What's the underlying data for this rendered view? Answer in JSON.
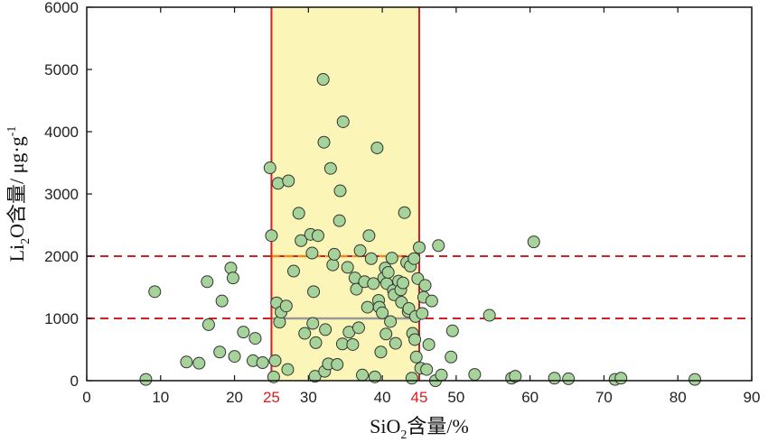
{
  "chart_data": {
    "type": "scatter",
    "xlabel": "SiO2含量/%",
    "ylabel": "Li2O含量/μg·g⁻¹",
    "xlim": [
      0,
      90
    ],
    "ylim": [
      0,
      6000
    ],
    "x_ticks": [
      0,
      10,
      20,
      30,
      40,
      50,
      60,
      70,
      80,
      90
    ],
    "y_ticks": [
      0,
      1000,
      2000,
      3000,
      4000,
      5000,
      6000
    ],
    "grid": false,
    "highlight_band": {
      "x_from": 25,
      "x_to": 45,
      "labels": [
        "25",
        "45"
      ],
      "fill": "#fbf5b8",
      "edge_color": "#d42020"
    },
    "reference_lines": [
      {
        "axis": "y",
        "value": 2000,
        "style": "dashed",
        "color": "#d42020"
      },
      {
        "axis": "y",
        "value": 1000,
        "style": "dashed",
        "color": "#d42020"
      }
    ],
    "band_reference_segments": [
      {
        "y": 2000,
        "color": "#f08a1a"
      },
      {
        "y": 1000,
        "color": "#999999"
      }
    ],
    "marker": {
      "fill": "#a6d39a",
      "stroke": "#333333"
    },
    "points": [
      [
        8,
        20
      ],
      [
        9.2,
        1430
      ],
      [
        13.5,
        300
      ],
      [
        15.2,
        280
      ],
      [
        16.3,
        1590
      ],
      [
        16.5,
        900
      ],
      [
        18,
        460
      ],
      [
        18.3,
        1280
      ],
      [
        19.5,
        1810
      ],
      [
        19.8,
        1650
      ],
      [
        20,
        390
      ],
      [
        21.2,
        780
      ],
      [
        22.5,
        320
      ],
      [
        22.8,
        680
      ],
      [
        23.8,
        290
      ],
      [
        24.8,
        3420
      ],
      [
        25,
        2330
      ],
      [
        25.3,
        60
      ],
      [
        25.5,
        320
      ],
      [
        25.7,
        1250
      ],
      [
        25.9,
        3170
      ],
      [
        26.1,
        940
      ],
      [
        26.3,
        1100
      ],
      [
        27,
        1200
      ],
      [
        27.2,
        180
      ],
      [
        27.3,
        3210
      ],
      [
        28,
        1760
      ],
      [
        28.7,
        2690
      ],
      [
        29,
        2250
      ],
      [
        29.5,
        760
      ],
      [
        30.3,
        2350
      ],
      [
        30.5,
        2050
      ],
      [
        30.6,
        920
      ],
      [
        30.7,
        1430
      ],
      [
        30.9,
        70
      ],
      [
        31,
        610
      ],
      [
        31.3,
        2330
      ],
      [
        32,
        4840
      ],
      [
        32.1,
        3830
      ],
      [
        32.2,
        150
      ],
      [
        32.3,
        820
      ],
      [
        32.7,
        270
      ],
      [
        33,
        3410
      ],
      [
        33.3,
        1860
      ],
      [
        33.5,
        2030
      ],
      [
        33.9,
        260
      ],
      [
        34.2,
        2570
      ],
      [
        34.3,
        3050
      ],
      [
        34.6,
        590
      ],
      [
        34.7,
        4160
      ],
      [
        35.3,
        1820
      ],
      [
        35.5,
        780
      ],
      [
        36,
        580
      ],
      [
        36.3,
        1650
      ],
      [
        36.5,
        1470
      ],
      [
        36.8,
        850
      ],
      [
        37,
        2090
      ],
      [
        37.3,
        90
      ],
      [
        37.6,
        1590
      ],
      [
        38,
        1180
      ],
      [
        38.2,
        2330
      ],
      [
        38.5,
        1960
      ],
      [
        38.8,
        1560
      ],
      [
        39,
        60
      ],
      [
        39.3,
        3740
      ],
      [
        39.5,
        1290
      ],
      [
        39.6,
        1180
      ],
      [
        39.8,
        460
      ],
      [
        40,
        1090
      ],
      [
        40.2,
        1650
      ],
      [
        40.4,
        1810
      ],
      [
        40.5,
        750
      ],
      [
        40.6,
        1560
      ],
      [
        40.8,
        1740
      ],
      [
        41.1,
        950
      ],
      [
        41.3,
        1970
      ],
      [
        41.5,
        1450
      ],
      [
        41.6,
        1380
      ],
      [
        41.8,
        600
      ],
      [
        42.2,
        1600
      ],
      [
        42.5,
        1460
      ],
      [
        42.6,
        1260
      ],
      [
        42.8,
        1570
      ],
      [
        43,
        2700
      ],
      [
        43.3,
        1900
      ],
      [
        43.5,
        1110
      ],
      [
        43.6,
        1160
      ],
      [
        43.8,
        1840
      ],
      [
        44,
        40
      ],
      [
        44.1,
        760
      ],
      [
        44.3,
        1960
      ],
      [
        44.4,
        660
      ],
      [
        44.5,
        1030
      ],
      [
        44.6,
        380
      ],
      [
        44.8,
        1640
      ],
      [
        45,
        2140
      ],
      [
        45.2,
        200
      ],
      [
        45.4,
        1080
      ],
      [
        45.6,
        1340
      ],
      [
        45.8,
        1530
      ],
      [
        46,
        180
      ],
      [
        46.3,
        580
      ],
      [
        46.7,
        1280
      ],
      [
        47.2,
        0
      ],
      [
        47.6,
        2170
      ],
      [
        48,
        90
      ],
      [
        49.3,
        380
      ],
      [
        49.5,
        800
      ],
      [
        52.5,
        100
      ],
      [
        54.5,
        1050
      ],
      [
        57.5,
        40
      ],
      [
        58,
        70
      ],
      [
        60.5,
        2230
      ],
      [
        63.3,
        40
      ],
      [
        65.2,
        30
      ],
      [
        71.5,
        20
      ],
      [
        72.3,
        40
      ],
      [
        82.3,
        20
      ]
    ]
  }
}
